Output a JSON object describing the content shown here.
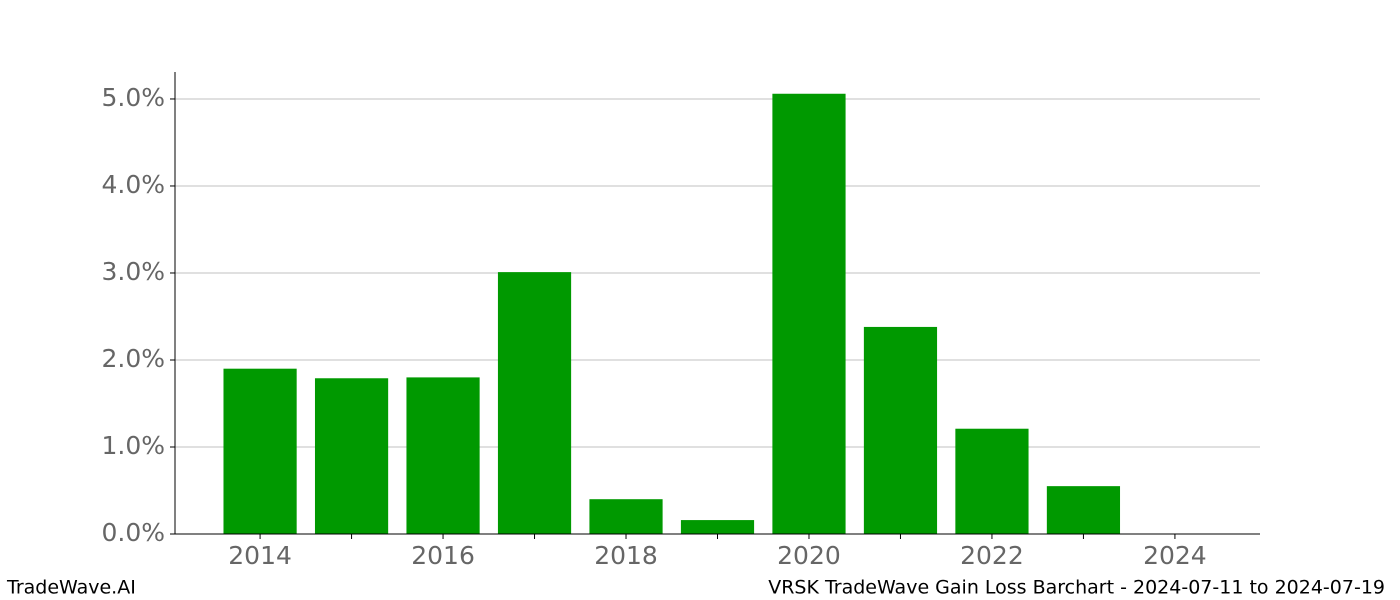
{
  "chart_data": {
    "type": "bar",
    "title": "VRSK TradeWave Gain Loss Barchart - 2024-07-11 to 2024-07-19",
    "brand": "TradeWave.AI",
    "x": [
      2014,
      2015,
      2016,
      2017,
      2018,
      2019,
      2020,
      2021,
      2022,
      2023
    ],
    "values": [
      1.9,
      1.79,
      1.8,
      3.01,
      0.4,
      0.16,
      5.06,
      2.38,
      1.21,
      0.55
    ],
    "color": "#009900",
    "xlim": [
      2013.07,
      2024.93
    ],
    "xticks": [
      2014,
      2016,
      2018,
      2020,
      2022,
      2024
    ],
    "xminorticks": [
      2015,
      2017,
      2019,
      2021,
      2023
    ],
    "ylim": [
      0,
      5.31
    ],
    "yticks": [
      {
        "value": 0,
        "label": "0.0%"
      },
      {
        "value": 1,
        "label": "1.0%"
      },
      {
        "value": 2,
        "label": "2.0%"
      },
      {
        "value": 3,
        "label": "3.0%"
      },
      {
        "value": 4,
        "label": "4.0%"
      },
      {
        "value": 5,
        "label": "5.0%"
      }
    ],
    "grid": true
  }
}
